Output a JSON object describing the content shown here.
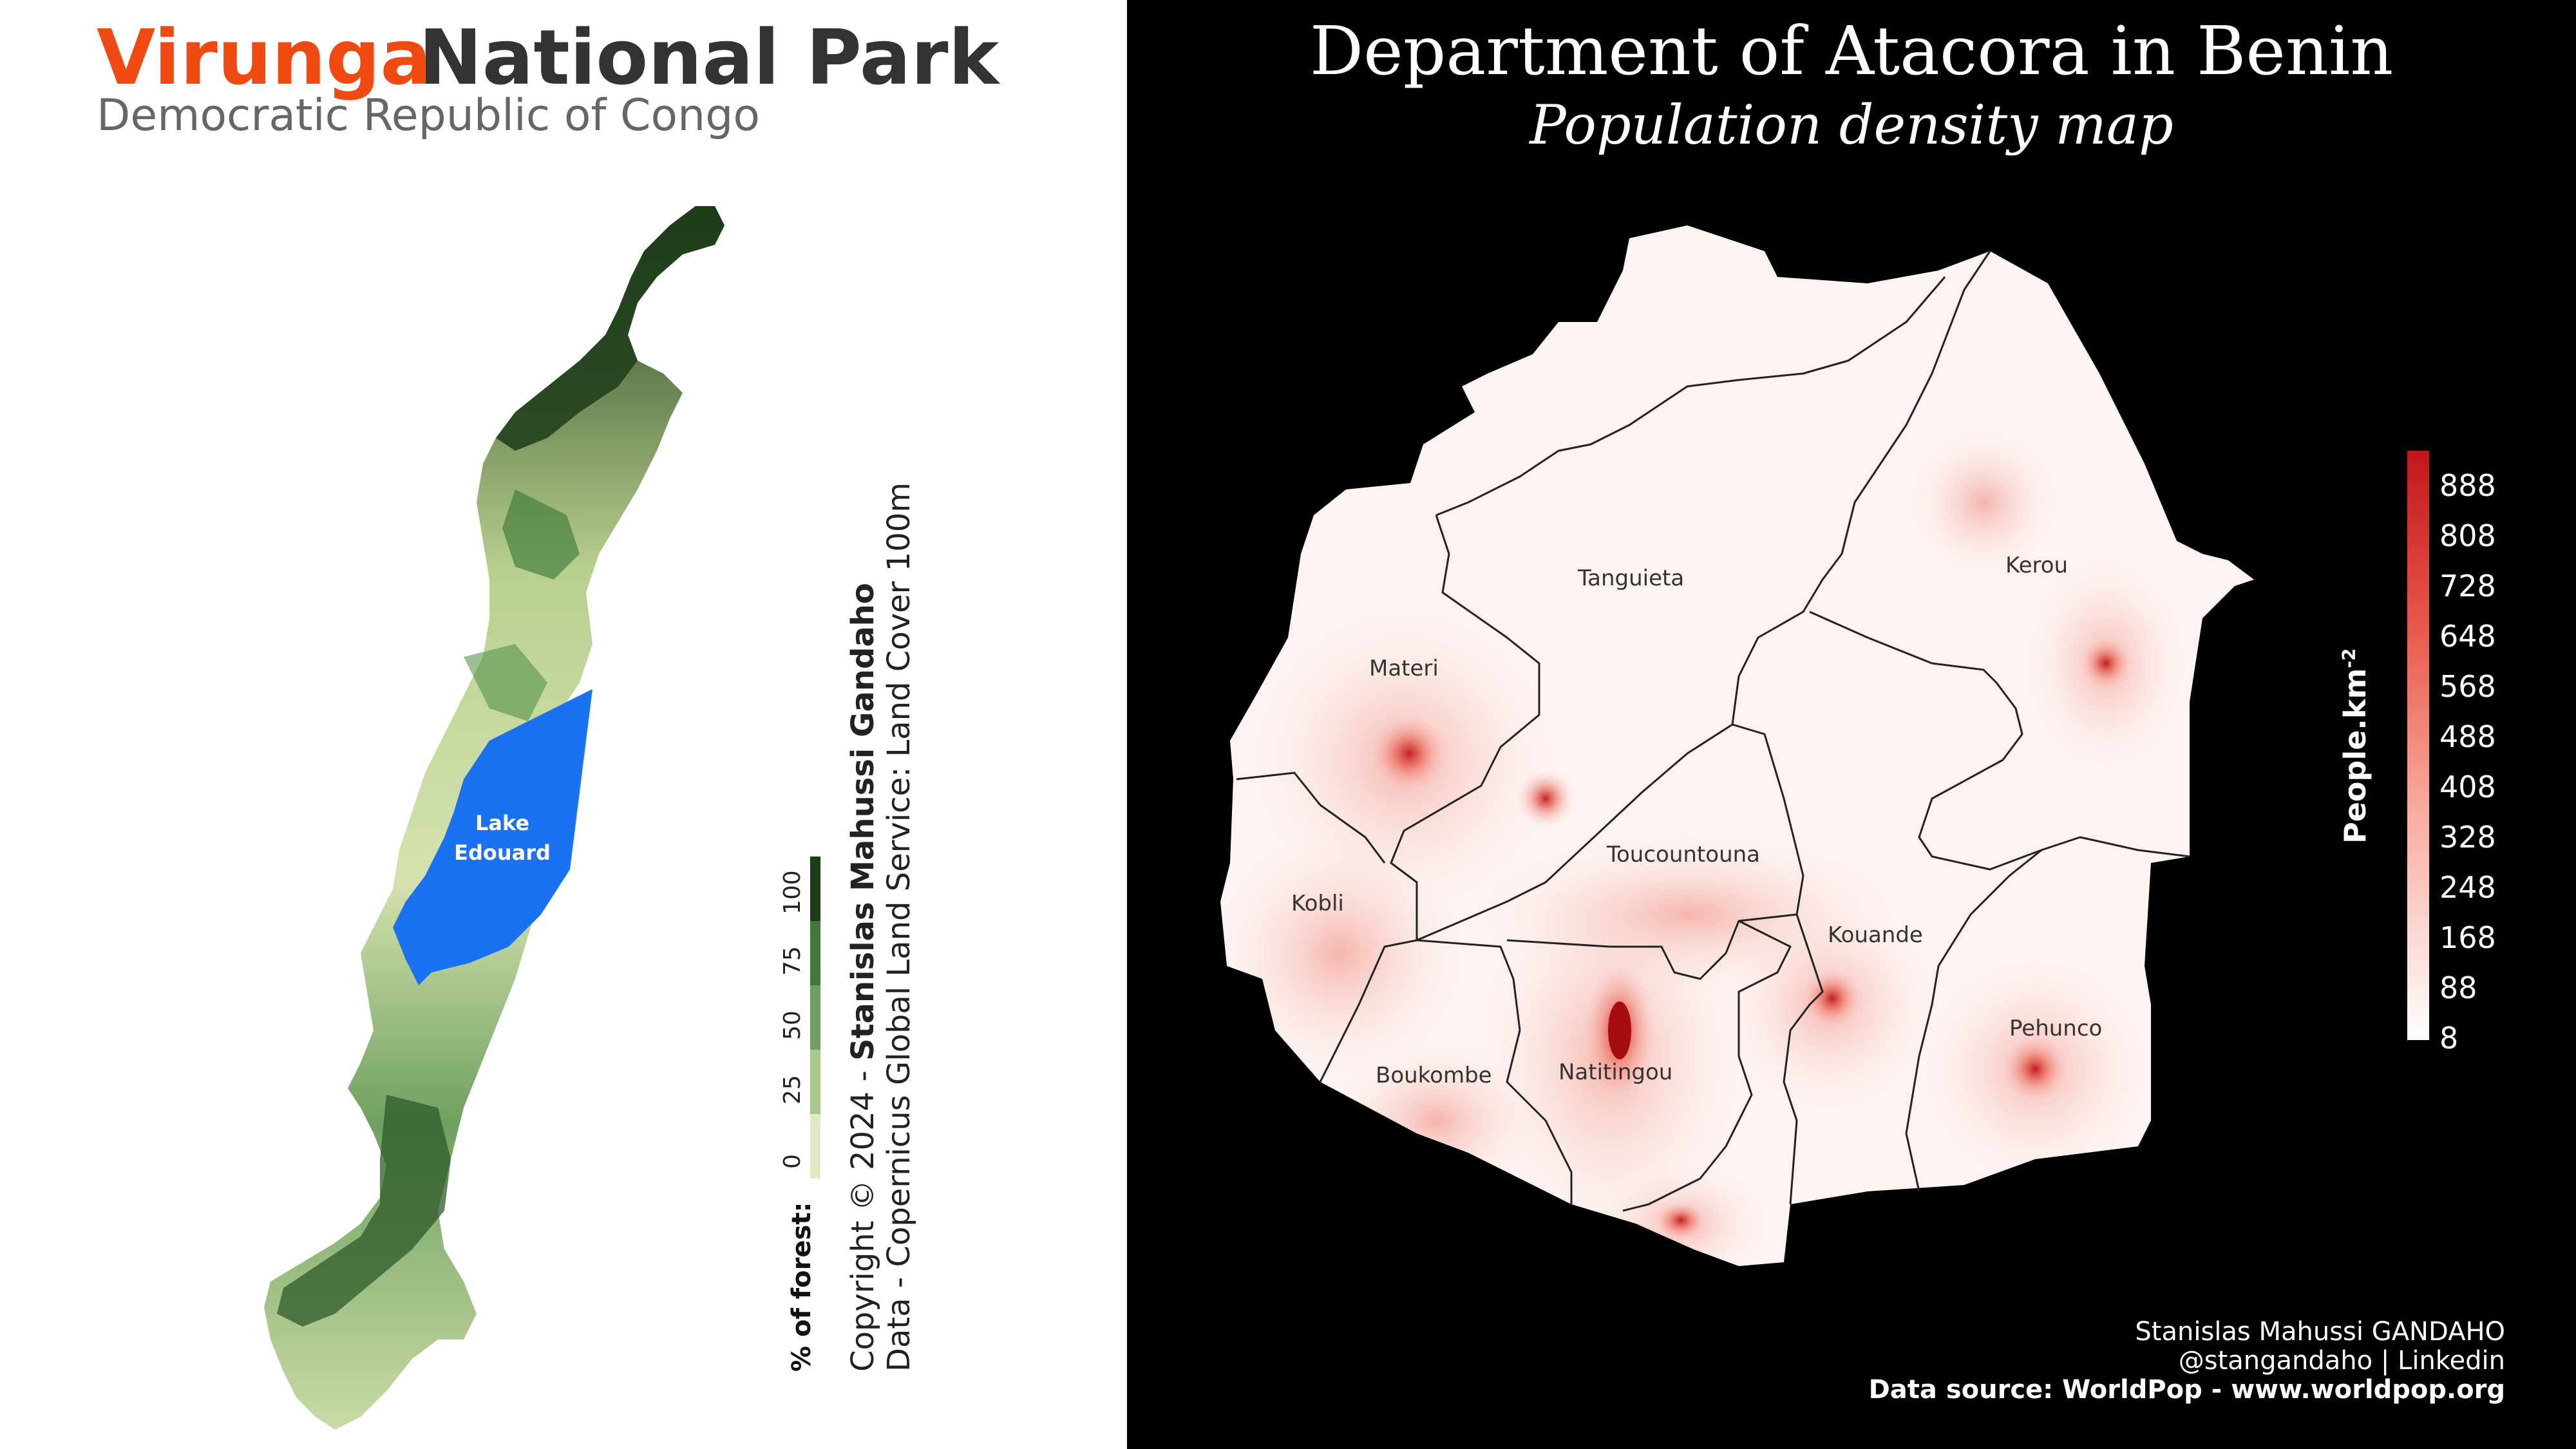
{
  "left": {
    "title_highlight": "Virunga",
    "title_rest": "National Park",
    "subtitle": "Democratic Republic of Congo",
    "lake_label_line1": "Lake",
    "lake_label_line2": "Edouard",
    "legend": {
      "title": "% of forest:",
      "ticks": [
        "0",
        "25",
        "50",
        "75",
        "100"
      ],
      "colors": [
        "#dfe8c4",
        "#a8c98a",
        "#6fa060",
        "#3f7a3c",
        "#1d3d1a"
      ]
    },
    "copyright_line1_prefix": "Copyright © 2024 - ",
    "copyright_author": "Stanislas Mahussi Gandaho",
    "copyright_line2": "Data - Copernicus Global Land Service: Land Cover 100m",
    "colors": {
      "lake": "#1a72f2",
      "forest_dark": "#1d3d1a",
      "forest_light": "#c9dba6"
    }
  },
  "right": {
    "title": "Department of Atacora in Benin",
    "subtitle": "Population density map",
    "communes": [
      "Tanguieta",
      "Kerou",
      "Materi",
      "Toucountouna",
      "Kobli",
      "Kouande",
      "Pehunco",
      "Boukombe",
      "Natitingou"
    ],
    "legend": {
      "label": "People.km",
      "exponent": "-2",
      "ticks": [
        "888",
        "808",
        "728",
        "648",
        "568",
        "488",
        "408",
        "328",
        "248",
        "168",
        "88",
        "8"
      ],
      "color_low": "#ffffff",
      "color_high": "#c0161a"
    },
    "credit_name": "Stanislas Mahussi GANDAHO",
    "credit_handle": "@stangandaho | Linkedin",
    "credit_source": "Data source: WorldPop - www.worldpop.org"
  }
}
